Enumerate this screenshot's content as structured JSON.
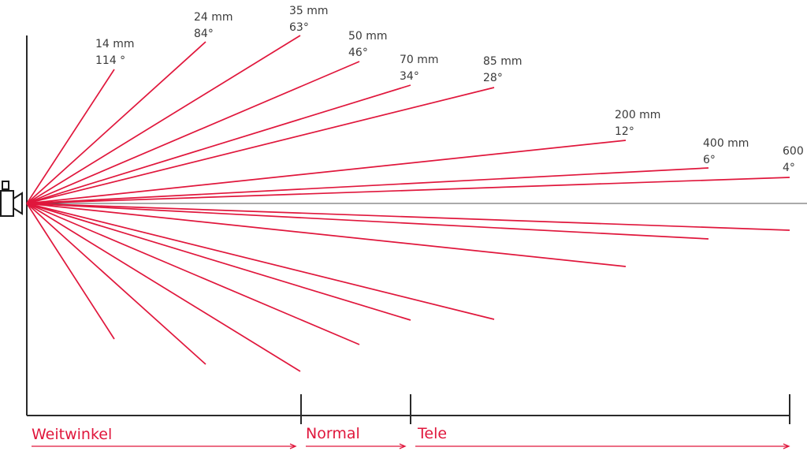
{
  "colors": {
    "ray": "#e0173c",
    "axis": "#2a2a2a",
    "text": "#3a3a3a"
  },
  "icon": "movie-camera-icon",
  "lenses": [
    {
      "focal": "14 mm",
      "angle": "114 °"
    },
    {
      "focal": "24 mm",
      "angle": "84°"
    },
    {
      "focal": "35 mm",
      "angle": "63°"
    },
    {
      "focal": "50 mm",
      "angle": "46°"
    },
    {
      "focal": "70 mm",
      "angle": "34°"
    },
    {
      "focal": "85 mm",
      "angle": "28°"
    },
    {
      "focal": "200 mm",
      "angle": "12°"
    },
    {
      "focal": "400 mm",
      "angle": "6°"
    },
    {
      "focal": "600",
      "angle": "4°"
    }
  ],
  "categories": [
    {
      "label": "Weitwinkel"
    },
    {
      "label": "Normal"
    },
    {
      "label": "Tele"
    }
  ]
}
